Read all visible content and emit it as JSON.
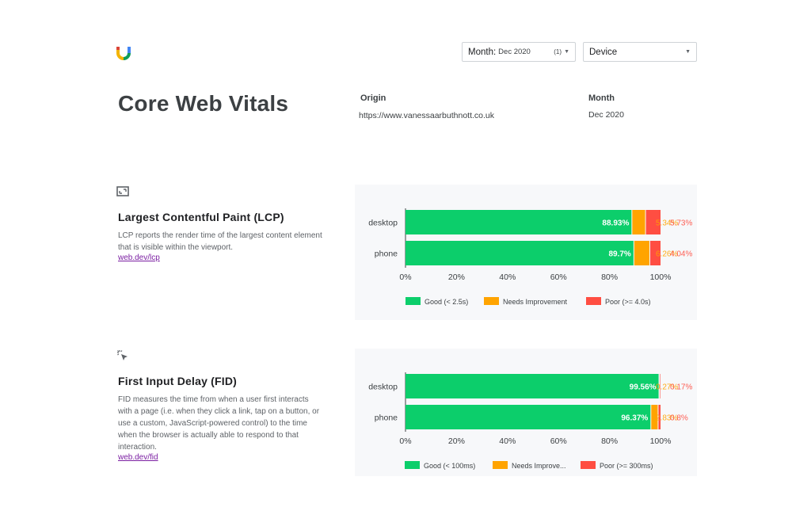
{
  "header": {
    "month_select": {
      "label": "Month:",
      "value": "Dec 2020",
      "count": "(1)"
    },
    "device_select": {
      "label": "Device"
    }
  },
  "page": {
    "title": "Core Web Vitals",
    "origin_label": "Origin",
    "origin_value": "https://www.vanessaarbuthnott.co.uk",
    "month_label": "Month",
    "month_value": "Dec 2020"
  },
  "sections": {
    "lcp": {
      "icon": "image-frame-icon",
      "title": "Largest Contentful Paint (LCP)",
      "description": "LCP reports the render time of the largest content element that is visible within the viewport.",
      "link": "web.dev/lcp"
    },
    "fid": {
      "icon": "cursor-click-icon",
      "title": "First Input Delay (FID)",
      "description": "FID measures the time from when a user first interacts with a page (i.e. when they click a link, tap on a button, or use a custom, JavaScript-powered control) to the time when the browser is actually able to respond to that interaction.",
      "link": "web.dev/fid"
    }
  },
  "chart_data": [
    {
      "type": "bar",
      "orientation": "horizontal",
      "stacked": true,
      "categories": [
        "desktop",
        "phone"
      ],
      "series": [
        {
          "name": "Good (< 2.5s)",
          "values": [
            88.93,
            89.7
          ],
          "labels": [
            "88.93%",
            "89.7%"
          ],
          "color": "#0cce6b"
        },
        {
          "name": "Needs Improvement",
          "values": [
            5.34,
            6.26
          ],
          "labels": [
            "5.34%",
            "6.26%"
          ],
          "color": "#ffa400"
        },
        {
          "name": "Poor (>= 4.0s)",
          "values": [
            5.73,
            4.04
          ],
          "labels": [
            "5.73%",
            "4.04%"
          ],
          "color": "#ff4e42"
        }
      ],
      "xticks": [
        "0%",
        "20%",
        "40%",
        "60%",
        "80%",
        "100%"
      ],
      "xlim": [
        0,
        100
      ],
      "legend": "bottom",
      "grid": false
    },
    {
      "type": "bar",
      "orientation": "horizontal",
      "stacked": true,
      "categories": [
        "desktop",
        "phone"
      ],
      "series": [
        {
          "name": "Good (< 100ms)",
          "values": [
            99.56,
            96.37
          ],
          "labels": [
            "99.56%",
            "96.37%"
          ],
          "color": "#0cce6b"
        },
        {
          "name": "Needs Improve...",
          "values": [
            0.27,
            2.83
          ],
          "labels": [
            "0.27%",
            "2.83%"
          ],
          "color": "#ffa400"
        },
        {
          "name": "Poor (>= 300ms)",
          "values": [
            0.17,
            0.8
          ],
          "labels": [
            "0.17%",
            "0.8%"
          ],
          "color": "#ff4e42"
        }
      ],
      "xticks": [
        "0%",
        "20%",
        "40%",
        "60%",
        "80%",
        "100%"
      ],
      "xlim": [
        0,
        100
      ],
      "legend": "bottom",
      "grid": false
    }
  ]
}
